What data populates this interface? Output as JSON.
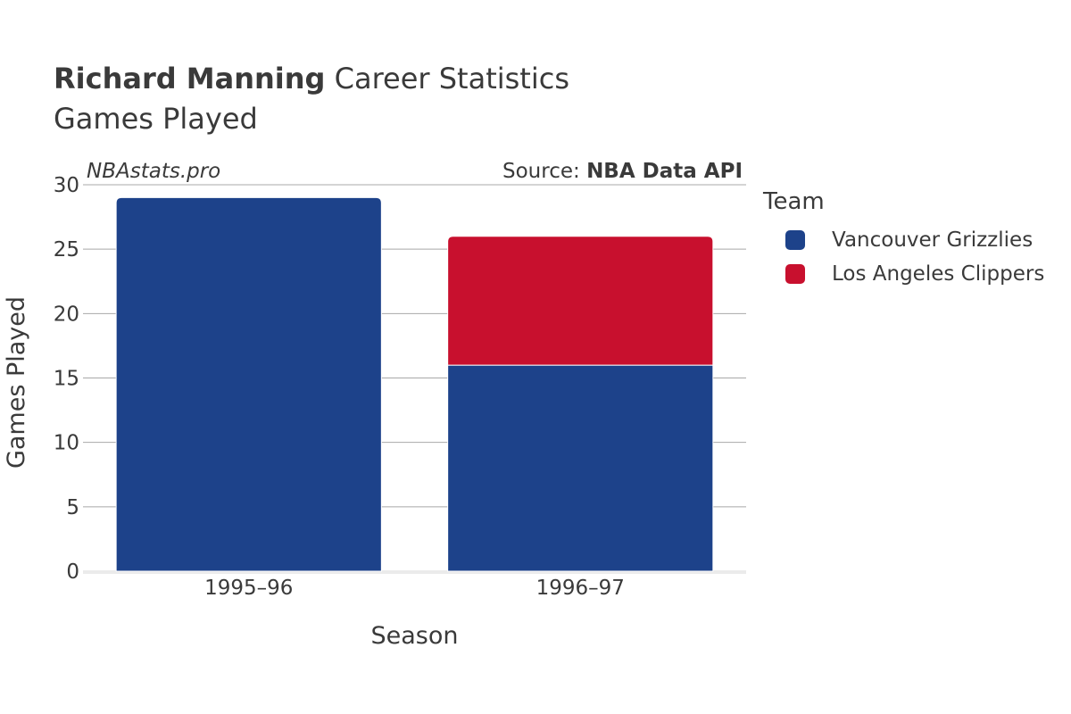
{
  "header": {
    "player_name": "Richard Manning",
    "title_suffix": "Career Statistics",
    "subtitle": "Games Played"
  },
  "watermark": "NBAstats.pro",
  "source": {
    "prefix": "Source: ",
    "name": "NBA Data API"
  },
  "legend": {
    "title": "Team",
    "items": [
      {
        "label": "Vancouver Grizzlies",
        "color": "#1d428a"
      },
      {
        "label": "Los Angeles Clippers",
        "color": "#c8102e"
      }
    ]
  },
  "chart_data": {
    "type": "bar",
    "stacked": true,
    "categories": [
      "1995–96",
      "1996–97"
    ],
    "series": [
      {
        "name": "Vancouver Grizzlies",
        "color": "#1d428a",
        "values": [
          29,
          16
        ]
      },
      {
        "name": "Los Angeles Clippers",
        "color": "#c8102e",
        "values": [
          0,
          10
        ]
      }
    ],
    "xlabel": "Season",
    "ylabel": "Games Played",
    "ylim": [
      0,
      30
    ],
    "yticks": [
      0,
      5,
      10,
      15,
      20,
      25,
      30
    ],
    "grid": true,
    "legend_position": "right"
  }
}
